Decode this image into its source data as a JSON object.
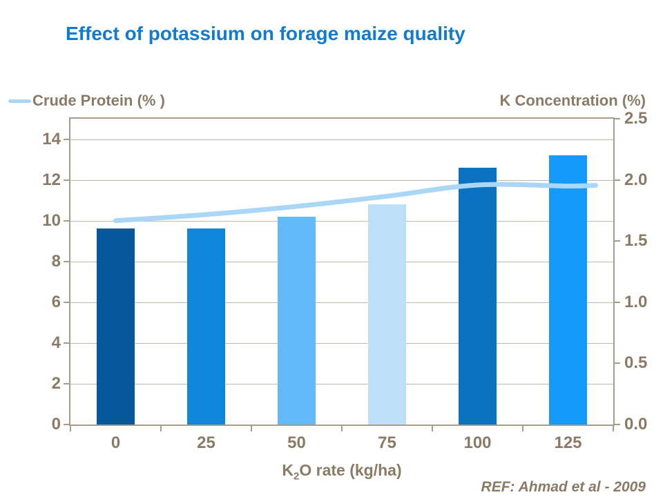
{
  "title": "Effect of potassium on forage maize quality",
  "legend": {
    "crude_protein_label": "Crude Protein (% )"
  },
  "right_axis_title_label": "K Concentration (%)",
  "x_axis": {
    "label_pre": "K",
    "label_sub": "2",
    "label_post": "O rate (kg/ha)"
  },
  "ref_note": "REF: Ahmad et al - 2009",
  "colors": {
    "title_text": "#0E7CD2",
    "axis_text": "#8A7A66",
    "plot_border": "#A79B8C",
    "gridline": "#C2B8AC",
    "line_series": "#ABD7F6",
    "background": "#FFFFFF"
  },
  "chart_data": {
    "type": "bar",
    "title": "Effect of potassium on forage maize quality",
    "categories": [
      "0",
      "25",
      "50",
      "75",
      "100",
      "125"
    ],
    "xlabel": "K2O rate (kg/ha)",
    "grid": true,
    "legend_position": "top-left",
    "series": [
      {
        "name": "K Concentration (%)",
        "chart_type": "bar",
        "axis": "right",
        "values": [
          1.6,
          1.6,
          1.7,
          1.8,
          2.1,
          2.2
        ],
        "bar_colors": [
          "#04589B",
          "#0E86DB",
          "#63BAF8",
          "#BDDFF8",
          "#0B72C1",
          "#149AFB"
        ]
      },
      {
        "name": "Crude Protein (%)",
        "chart_type": "line",
        "axis": "left",
        "values": [
          10.0,
          10.3,
          10.7,
          11.2,
          11.75,
          11.7
        ],
        "color": "#ABD7F6"
      }
    ],
    "left_axis": {
      "title": "Crude Protein (%)",
      "min": 0,
      "max": 15,
      "tick_values": [
        0,
        2,
        4,
        6,
        8,
        10,
        12,
        14
      ],
      "tick_labels": [
        "0",
        "2",
        "4",
        "6",
        "8",
        "10",
        "12",
        "14"
      ]
    },
    "right_axis": {
      "title": "K Concentration (%)",
      "min": 0,
      "max": 2.5,
      "tick_values": [
        0,
        0.5,
        1.0,
        1.5,
        2.0,
        2.5
      ],
      "tick_labels": [
        "0.0",
        "0.5",
        "1.0",
        "1.5",
        "2.0",
        "2.5"
      ]
    }
  }
}
